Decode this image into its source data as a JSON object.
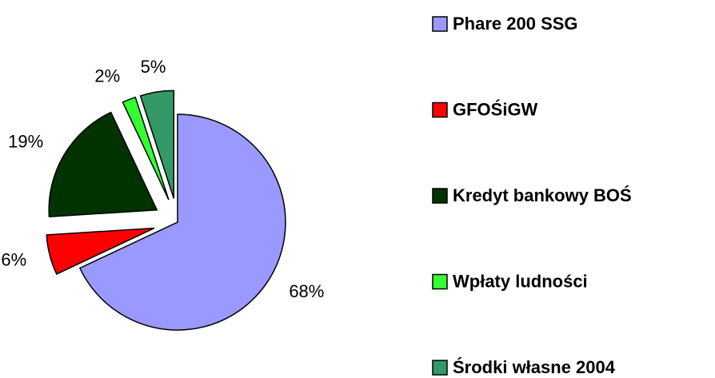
{
  "chart_data": {
    "type": "pie",
    "categories": [
      "Phare 200 SSG",
      "GFOŚiGW",
      "Kredyt bankowy BOŚ",
      "Wpłaty ludności",
      "Środki własne 2004"
    ],
    "values": [
      68,
      6,
      19,
      2,
      5
    ],
    "value_labels": [
      "68%",
      "6%",
      "19%",
      "2%",
      "5%"
    ],
    "colors": [
      "#9999ff",
      "#ff0000",
      "#003300",
      "#33ff33",
      "#339966"
    ],
    "exploded": [
      false,
      true,
      true,
      true,
      true
    ],
    "legend": "right"
  }
}
